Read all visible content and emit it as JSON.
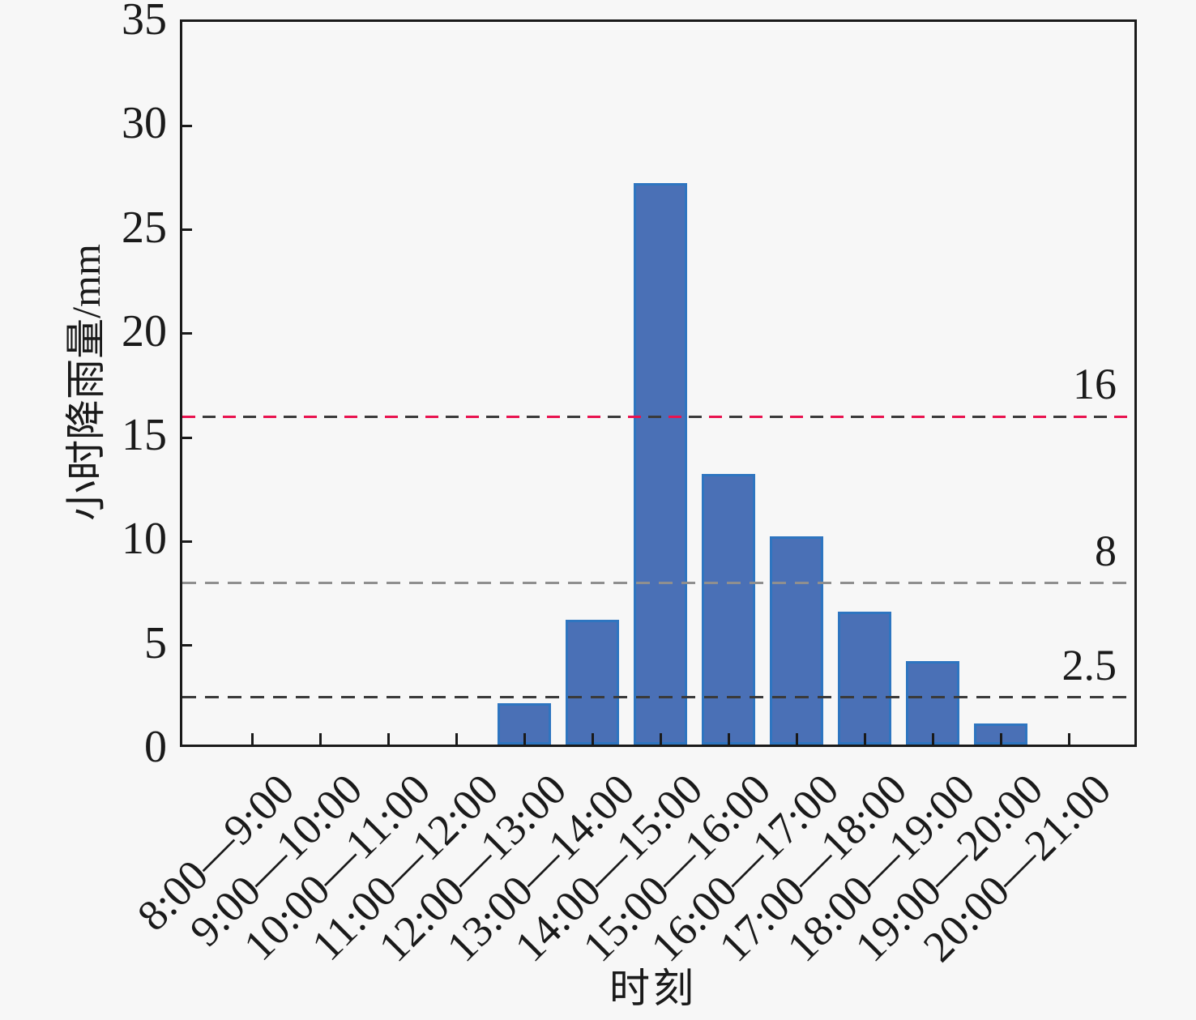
{
  "chart_data": {
    "type": "bar",
    "title": "",
    "xlabel": "时刻",
    "ylabel": "小时降雨量/mm",
    "categories": [
      "8:00—9:00",
      "9:00—10:00",
      "10:00—11:00",
      "11:00—12:00",
      "12:00—13:00",
      "13:00—14:00",
      "14:00—15:00",
      "15:00—16:00",
      "16:00—17:00",
      "17:00—18:00",
      "18:00—19:00",
      "19:00—20:00",
      "20:00—21:00"
    ],
    "values": [
      0,
      0,
      0,
      0,
      2,
      6,
      27,
      13,
      10,
      6.4,
      4,
      1,
      0
    ],
    "ylim": [
      0,
      35
    ],
    "yticks": [
      0,
      5,
      10,
      15,
      20,
      25,
      30,
      35
    ],
    "grid": false,
    "legend": "none",
    "bar_color": "#4a70b6",
    "bar_border_color": "#2e75c0",
    "axis_color": "#1a1a1a",
    "background_color": "#f7f7f7",
    "reference_lines": [
      {
        "value": 16,
        "label": "16",
        "color": "#e8134f",
        "alt_color": "#3a3a3a",
        "style": "dashed"
      },
      {
        "value": 8,
        "label": "8",
        "color": "#8f8f8f",
        "alt_color": null,
        "style": "dashed"
      },
      {
        "value": 2.5,
        "label": "2.5",
        "color": "#3a3a3a",
        "alt_color": null,
        "style": "dashed"
      }
    ]
  }
}
